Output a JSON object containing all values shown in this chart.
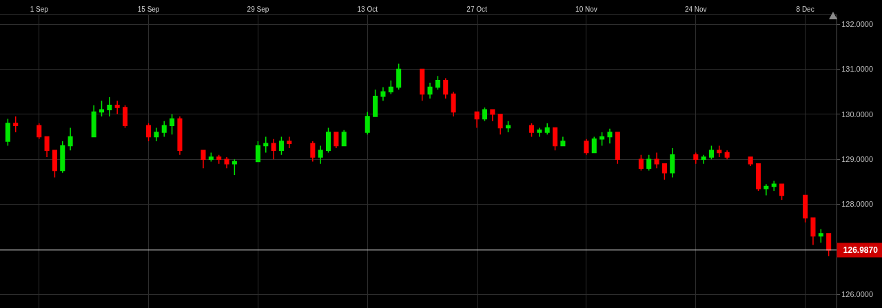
{
  "chart_data": {
    "type": "candlestick",
    "x": [
      "--08-28",
      "--08-29",
      "--09-01",
      "--09-02",
      "--09-03",
      "--09-04",
      "--09-05",
      "--09-08",
      "--09-09",
      "--09-10",
      "--09-11",
      "--09-12",
      "--09-15",
      "--09-16",
      "--09-17",
      "--09-18",
      "--09-19",
      "--09-22",
      "--09-23",
      "--09-24",
      "--09-25",
      "--09-26",
      "--09-29",
      "--09-30",
      "--10-01",
      "--10-02",
      "--10-03",
      "--10-06",
      "--10-07",
      "--10-08",
      "--10-09",
      "--10-10",
      "--10-13",
      "--10-14",
      "--10-15",
      "--10-16",
      "--10-17",
      "--10-20",
      "--10-21",
      "--10-22",
      "--10-23",
      "--10-24",
      "--10-27",
      "--10-28",
      "--10-29",
      "--10-30",
      "--10-31",
      "--11-03",
      "--11-04",
      "--11-05",
      "--11-06",
      "--11-07",
      "--11-10",
      "--11-11",
      "--11-12",
      "--11-13",
      "--11-14",
      "--11-17",
      "--11-18",
      "--11-19",
      "--11-20",
      "--11-21",
      "--11-24",
      "--11-25",
      "--11-26",
      "--11-27",
      "--11-28",
      "--12-01",
      "--12-02",
      "--12-03",
      "--12-04",
      "--12-05",
      "--12-08",
      "--12-09",
      "--12-10",
      "--12-11"
    ],
    "ohlc": [
      [
        129.4,
        129.9,
        129.3,
        129.8
      ],
      [
        129.8,
        129.95,
        129.6,
        129.75
      ],
      [
        129.75,
        129.8,
        129.45,
        129.5
      ],
      [
        129.5,
        129.5,
        129.05,
        129.2
      ],
      [
        129.2,
        129.2,
        128.6,
        128.75
      ],
      [
        128.75,
        129.4,
        128.7,
        129.3
      ],
      [
        129.3,
        129.7,
        129.2,
        129.5
      ],
      [
        129.5,
        130.2,
        129.5,
        130.05
      ],
      [
        130.05,
        130.3,
        129.95,
        130.1
      ],
      [
        130.1,
        130.38,
        129.95,
        130.2
      ],
      [
        130.2,
        130.3,
        130.0,
        130.15
      ],
      [
        130.15,
        130.2,
        129.7,
        129.75
      ],
      [
        129.75,
        129.8,
        129.4,
        129.5
      ],
      [
        129.5,
        129.7,
        129.4,
        129.6
      ],
      [
        129.6,
        129.85,
        129.5,
        129.75
      ],
      [
        129.75,
        130.0,
        129.55,
        129.9
      ],
      [
        129.9,
        129.95,
        129.1,
        129.2
      ],
      [
        129.2,
        129.2,
        128.8,
        129.0
      ],
      [
        129.0,
        129.15,
        128.95,
        129.05
      ],
      [
        129.05,
        129.1,
        128.9,
        129.0
      ],
      [
        129.0,
        129.05,
        128.8,
        128.9
      ],
      [
        128.9,
        129.0,
        128.65,
        128.95
      ],
      [
        128.95,
        129.4,
        128.95,
        129.3
      ],
      [
        129.3,
        129.5,
        129.15,
        129.35
      ],
      [
        129.35,
        129.45,
        129.0,
        129.2
      ],
      [
        129.2,
        129.5,
        129.1,
        129.4
      ],
      [
        129.4,
        129.5,
        129.25,
        129.35
      ],
      [
        129.35,
        129.4,
        128.95,
        129.05
      ],
      [
        129.05,
        129.3,
        128.9,
        129.2
      ],
      [
        129.2,
        129.7,
        129.15,
        129.6
      ],
      [
        129.6,
        129.6,
        129.25,
        129.3
      ],
      [
        129.3,
        129.65,
        129.3,
        129.6
      ],
      [
        129.6,
        130.05,
        129.55,
        129.95
      ],
      [
        129.95,
        130.55,
        129.95,
        130.4
      ],
      [
        130.4,
        130.6,
        130.3,
        130.5
      ],
      [
        130.5,
        130.75,
        130.45,
        130.6
      ],
      [
        130.6,
        131.12,
        130.55,
        131.0
      ],
      [
        131.0,
        131.0,
        130.3,
        130.45
      ],
      [
        130.45,
        130.7,
        130.35,
        130.6
      ],
      [
        130.6,
        130.85,
        130.55,
        130.75
      ],
      [
        130.75,
        130.8,
        130.35,
        130.45
      ],
      [
        130.45,
        130.5,
        129.95,
        130.05
      ],
      [
        130.05,
        130.05,
        129.7,
        129.9
      ],
      [
        129.9,
        130.15,
        129.85,
        130.1
      ],
      [
        130.1,
        130.1,
        129.85,
        130.0
      ],
      [
        130.0,
        130.0,
        129.55,
        129.7
      ],
      [
        129.7,
        129.85,
        129.6,
        129.75
      ],
      [
        129.75,
        129.8,
        129.5,
        129.6
      ],
      [
        129.6,
        129.7,
        129.5,
        129.65
      ],
      [
        129.6,
        129.8,
        129.55,
        129.7
      ],
      [
        129.7,
        129.7,
        129.2,
        129.3
      ],
      [
        129.3,
        129.5,
        129.3,
        129.4
      ],
      [
        129.4,
        129.45,
        129.1,
        129.15
      ],
      [
        129.15,
        129.5,
        129.15,
        129.45
      ],
      [
        129.45,
        129.6,
        129.3,
        129.5
      ],
      [
        129.5,
        129.68,
        129.35,
        129.6
      ],
      [
        129.6,
        129.6,
        128.9,
        129.0
      ],
      [
        129.0,
        129.1,
        128.75,
        128.8
      ],
      [
        128.8,
        129.1,
        128.75,
        129.0
      ],
      [
        129.0,
        129.15,
        128.8,
        128.9
      ],
      [
        128.9,
        128.9,
        128.55,
        128.7
      ],
      [
        128.7,
        129.25,
        128.6,
        129.1
      ],
      [
        129.1,
        129.15,
        128.9,
        129.0
      ],
      [
        129.0,
        129.1,
        128.9,
        129.05
      ],
      [
        129.05,
        129.3,
        129.0,
        129.2
      ],
      [
        129.2,
        129.3,
        129.05,
        129.15
      ],
      [
        129.15,
        129.2,
        129.0,
        129.05
      ],
      [
        129.05,
        129.05,
        128.85,
        128.9
      ],
      [
        128.9,
        128.9,
        128.3,
        128.35
      ],
      [
        128.35,
        128.45,
        128.2,
        128.4
      ],
      [
        128.4,
        128.52,
        128.3,
        128.45
      ],
      [
        128.45,
        128.45,
        128.1,
        128.2
      ],
      [
        128.2,
        128.2,
        127.6,
        127.7
      ],
      [
        127.7,
        127.7,
        127.1,
        127.3
      ],
      [
        127.3,
        127.45,
        127.15,
        127.35
      ],
      [
        127.35,
        127.35,
        126.85,
        126.987
      ]
    ],
    "colors": [
      "#00e600",
      "#ff0000",
      "#ff0000",
      "#ff0000",
      "#ff0000",
      "#00e600",
      "#00e600",
      "#00e600",
      "#00e600",
      "#00e600",
      "#ff0000",
      "#ff0000",
      "#ff0000",
      "#00e600",
      "#00e600",
      "#00e600",
      "#ff0000",
      "#ff0000",
      "#00e600",
      "#ff0000",
      "#ff0000",
      "#00e600",
      "#00e600",
      "#00e600",
      "#ff0000",
      "#00e600",
      "#ff0000",
      "#ff0000",
      "#00e600",
      "#00e600",
      "#ff0000",
      "#00e600",
      "#00e600",
      "#00e600",
      "#00e600",
      "#00e600",
      "#00e600",
      "#ff0000",
      "#00e600",
      "#00e600",
      "#ff0000",
      "#ff0000",
      "#ff0000",
      "#00e600",
      "#ff0000",
      "#ff0000",
      "#00e600",
      "#ff0000",
      "#00e600",
      "#00e600",
      "#ff0000",
      "#00e600",
      "#ff0000",
      "#00e600",
      "#00e600",
      "#00e600",
      "#ff0000",
      "#ff0000",
      "#00e600",
      "#ff0000",
      "#ff0000",
      "#00e600",
      "#ff0000",
      "#00e600",
      "#00e600",
      "#ff0000",
      "#ff0000",
      "#ff0000",
      "#ff0000",
      "#00e600",
      "#00e600",
      "#ff0000",
      "#ff0000",
      "#ff0000",
      "#00e600",
      "#ff0000"
    ],
    "xlim": [
      "--08-27",
      "--12-12"
    ],
    "xticks": [
      {
        "value": "--09-01",
        "label": "1 Sep"
      },
      {
        "value": "--09-15",
        "label": "15 Sep"
      },
      {
        "value": "--09-29",
        "label": "29 Sep"
      },
      {
        "value": "--10-13",
        "label": "13 Oct"
      },
      {
        "value": "--10-27",
        "label": "27 Oct"
      },
      {
        "value": "--11-10",
        "label": "10 Nov"
      },
      {
        "value": "--11-24",
        "label": "24 Nov"
      },
      {
        "value": "--12-08",
        "label": "8 Dec"
      }
    ],
    "ylim": [
      125.7,
      132.2
    ],
    "yticks": [
      {
        "value": 126,
        "label": "126.0000"
      },
      {
        "value": 128,
        "label": "128.0000"
      },
      {
        "value": 129,
        "label": "129.0000"
      },
      {
        "value": 130,
        "label": "130.0000"
      },
      {
        "value": 131,
        "label": "131.0000"
      },
      {
        "value": 132,
        "label": "132.0000"
      }
    ],
    "ref_lines": [
      {
        "axis": "y",
        "value": 126.987,
        "label": "126.9870",
        "color": "#cfcfcf"
      }
    ],
    "grid": true
  }
}
